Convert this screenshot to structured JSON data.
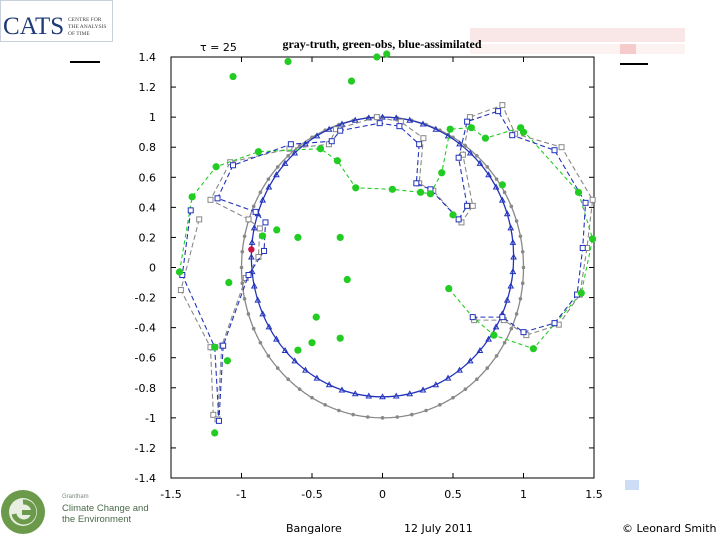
{
  "logo": {
    "acronym": "CATS",
    "subtitle_lines": [
      "CENTRE FOR",
      "THE ANALYSIS",
      "OF TIME"
    ]
  },
  "partner_logo": {
    "line1": "Grantham",
    "line2": "Climate Change and",
    "line3": "the Environment"
  },
  "footer": {
    "location": "Bangalore",
    "date": "12 July 2011",
    "credit": "© Leonard Smith"
  },
  "colors": {
    "truth": "#888888",
    "obs": "#22cc22",
    "assimilated": "#2233bb",
    "marker_red": "#cc1144"
  },
  "chart_data": {
    "type": "scatter",
    "title": "gray-truth, green-obs, blue-assimilated",
    "annotation": "τ = 25",
    "xlim": [
      -1.5,
      1.5
    ],
    "ylim": [
      -1.4,
      1.4
    ],
    "xticks": [
      "-1.5",
      "-1",
      "-0.5",
      "0",
      "0.5",
      "1",
      "1.5"
    ],
    "xtick_values": [
      -1.5,
      -1,
      -0.5,
      0,
      0.5,
      1,
      1.5
    ],
    "yticks": [
      "1.4",
      "1.2",
      "1",
      "0.8",
      "0.6",
      "0.4",
      "0.2",
      "0",
      "-0.2",
      "-0.4",
      "-0.6",
      "-0.8",
      "-1",
      "-1.2",
      "-1.4"
    ],
    "ytick_values": [
      1.4,
      1.2,
      1,
      0.8,
      0.6,
      0.4,
      0.2,
      0,
      -0.2,
      -0.4,
      -0.6,
      -0.8,
      -1,
      -1.2,
      -1.4
    ],
    "grid": false,
    "circle_truth": {
      "cx": 0,
      "cy": 0,
      "r": 1.0
    },
    "circle_assimilated": {
      "cx": 0,
      "cy": 0.07,
      "r": 0.93
    },
    "series": [
      {
        "name": "gray-truth",
        "polyline": [
          [
            -1.3,
            0.32
          ],
          [
            -1.43,
            -0.15
          ],
          [
            -1.22,
            -0.53
          ],
          [
            -1.2,
            -0.98
          ],
          [
            -1.17,
            -1.01
          ],
          [
            -1.14,
            -0.52
          ],
          [
            -0.97,
            -0.07
          ],
          [
            -0.88,
            0.07
          ],
          [
            -0.87,
            0.26
          ],
          [
            -0.95,
            0.32
          ],
          [
            -1.22,
            0.45
          ],
          [
            -1.08,
            0.7
          ],
          [
            -0.66,
            0.79
          ],
          [
            -0.38,
            0.82
          ],
          [
            -0.33,
            0.92
          ],
          [
            -0.04,
            1.0
          ],
          [
            0.13,
            0.97
          ],
          [
            0.29,
            0.86
          ],
          [
            0.26,
            0.56
          ],
          [
            0.36,
            0.51
          ],
          [
            0.56,
            0.3
          ],
          [
            0.64,
            0.41
          ],
          [
            0.57,
            0.75
          ],
          [
            0.62,
            1.0
          ],
          [
            0.85,
            1.08
          ],
          [
            0.94,
            0.89
          ],
          [
            1.27,
            0.8
          ],
          [
            1.49,
            0.45
          ],
          [
            1.45,
            0.13
          ],
          [
            1.4,
            -0.18
          ],
          [
            1.25,
            -0.38
          ],
          [
            1.02,
            -0.45
          ],
          [
            0.86,
            -0.35
          ],
          [
            0.65,
            -0.35
          ]
        ]
      },
      {
        "name": "green-obs",
        "polyline": [
          [
            -1.44,
            -0.03
          ],
          [
            -1.35,
            0.47
          ],
          [
            -1.18,
            0.67
          ],
          [
            -0.88,
            0.77
          ],
          [
            -0.44,
            0.79
          ],
          [
            -0.32,
            0.71
          ],
          [
            -0.19,
            0.53
          ],
          [
            0.07,
            0.52
          ],
          [
            0.27,
            0.5
          ],
          [
            0.34,
            0.49
          ],
          [
            0.42,
            0.63
          ],
          [
            0.48,
            0.92
          ],
          [
            0.63,
            0.93
          ],
          [
            0.73,
            0.86
          ],
          [
            0.98,
            0.93
          ],
          [
            1.39,
            0.5
          ],
          [
            1.49,
            0.19
          ],
          [
            1.41,
            -0.17
          ],
          [
            1.07,
            -0.54
          ],
          [
            0.79,
            -0.45
          ],
          [
            0.64,
            -0.33
          ],
          [
            0.47,
            -0.14
          ]
        ]
      },
      {
        "name": "blue-assimilated",
        "polyline": [
          [
            -1.36,
            0.38
          ],
          [
            -1.42,
            -0.05
          ],
          [
            -1.19,
            -0.53
          ],
          [
            -1.16,
            -1.02
          ],
          [
            -1.13,
            -0.52
          ],
          [
            -0.95,
            -0.05
          ],
          [
            -0.84,
            0.11
          ],
          [
            -0.83,
            0.3
          ],
          [
            -0.9,
            0.37
          ],
          [
            -1.17,
            0.46
          ],
          [
            -1.06,
            0.68
          ],
          [
            -0.65,
            0.82
          ],
          [
            -0.36,
            0.84
          ],
          [
            -0.3,
            0.91
          ],
          [
            -0.02,
            0.96
          ],
          [
            0.12,
            0.94
          ],
          [
            0.26,
            0.82
          ],
          [
            0.24,
            0.56
          ],
          [
            0.34,
            0.52
          ],
          [
            0.54,
            0.32
          ],
          [
            0.6,
            0.41
          ],
          [
            0.54,
            0.73
          ],
          [
            0.6,
            0.97
          ],
          [
            0.82,
            1.04
          ],
          [
            0.92,
            0.88
          ],
          [
            1.22,
            0.78
          ],
          [
            1.44,
            0.43
          ],
          [
            1.42,
            0.13
          ],
          [
            1.38,
            -0.18
          ],
          [
            1.22,
            -0.37
          ],
          [
            1.0,
            -0.43
          ],
          [
            0.85,
            -0.33
          ],
          [
            0.64,
            -0.33
          ]
        ]
      }
    ],
    "green_dots": [
      [
        -1.44,
        -0.03
      ],
      [
        -1.35,
        0.47
      ],
      [
        -1.18,
        0.67
      ],
      [
        -1.1,
        -0.62
      ],
      [
        -1.19,
        -0.53
      ],
      [
        -1.19,
        -1.1
      ],
      [
        -0.88,
        0.77
      ],
      [
        -0.44,
        0.79
      ],
      [
        -0.32,
        0.71
      ],
      [
        -0.19,
        0.53
      ],
      [
        0.07,
        0.52
      ],
      [
        0.27,
        0.5
      ],
      [
        0.34,
        0.49
      ],
      [
        0.42,
        0.63
      ],
      [
        0.48,
        0.92
      ],
      [
        0.63,
        0.93
      ],
      [
        0.73,
        0.86
      ],
      [
        0.98,
        0.93
      ],
      [
        1.39,
        0.5
      ],
      [
        1.49,
        0.19
      ],
      [
        1.41,
        -0.17
      ],
      [
        1.07,
        -0.54
      ],
      [
        0.79,
        -0.45
      ],
      [
        0.47,
        -0.14
      ],
      [
        -0.04,
        1.4
      ],
      [
        -0.22,
        1.24
      ],
      [
        -0.67,
        1.37
      ],
      [
        -1.06,
        1.27
      ],
      [
        -0.6,
        -0.55
      ],
      [
        -0.5,
        -0.5
      ],
      [
        -0.25,
        -0.08
      ],
      [
        -0.3,
        -0.47
      ],
      [
        -0.6,
        0.2
      ],
      [
        -0.85,
        0.21
      ],
      [
        -0.75,
        0.25
      ],
      [
        -0.3,
        0.2
      ],
      [
        -0.47,
        -0.33
      ],
      [
        0.5,
        0.35
      ],
      [
        0.85,
        0.55
      ],
      [
        1.0,
        0.9
      ],
      [
        -1.09,
        -0.1
      ],
      [
        0.03,
        1.42
      ]
    ],
    "red_marker": [
      -0.93,
      0.12
    ]
  }
}
